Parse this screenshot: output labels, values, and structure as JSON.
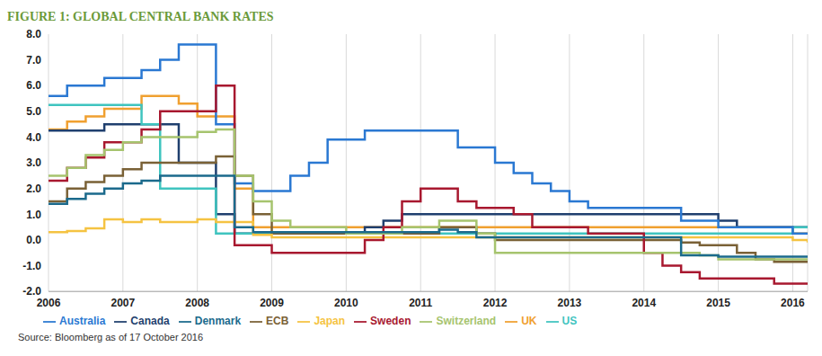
{
  "chart_data": {
    "type": "line",
    "title": "FIGURE 1: GLOBAL CENTRAL BANK RATES",
    "source": "Source: Bloomberg as of 17 October 2016",
    "line_style": "step",
    "grid": true,
    "legend": "bottom",
    "x": [
      2006,
      2006.25,
      2006.5,
      2006.75,
      2007,
      2007.25,
      2007.5,
      2007.75,
      2008,
      2008.25,
      2008.5,
      2008.75,
      2009,
      2009.25,
      2009.5,
      2009.75,
      2010,
      2010.25,
      2010.5,
      2010.75,
      2011,
      2011.25,
      2011.5,
      2011.75,
      2012,
      2012.25,
      2012.5,
      2012.75,
      2013,
      2013.25,
      2013.5,
      2013.75,
      2014,
      2014.25,
      2014.5,
      2014.75,
      2015,
      2015.25,
      2015.5,
      2015.75,
      2016,
      2016.2
    ],
    "xlim": [
      2006,
      2016.2
    ],
    "xticks": [
      2006,
      2007,
      2008,
      2009,
      2010,
      2011,
      2012,
      2013,
      2014,
      2015,
      2016
    ],
    "ylim": [
      -2,
      8
    ],
    "yticks": [
      {
        "value": 8,
        "label": "8.0"
      },
      {
        "value": 7,
        "label": "7.0"
      },
      {
        "value": 6,
        "label": "6.0"
      },
      {
        "value": 5,
        "label": "5.0"
      },
      {
        "value": 4,
        "label": "4.0"
      },
      {
        "value": 3,
        "label": "3.0"
      },
      {
        "value": 2,
        "label": "2.0"
      },
      {
        "value": 1,
        "label": "1.0"
      },
      {
        "value": 0,
        "label": "0.0"
      },
      {
        "value": -1,
        "label": "-1.0"
      },
      {
        "value": -2,
        "label": "-2.0"
      }
    ],
    "series": [
      {
        "name": "UK",
        "color": "#f0a030",
        "values": [
          4.3,
          4.6,
          4.8,
          5.1,
          5.1,
          5.6,
          5.6,
          5.3,
          4.8,
          4.8,
          2.0,
          0.5,
          0.5,
          0.5,
          0.5,
          0.5,
          0.5,
          0.5,
          0.5,
          0.5,
          0.5,
          0.5,
          0.5,
          0.5,
          0.5,
          0.5,
          0.5,
          0.5,
          0.5,
          0.5,
          0.5,
          0.5,
          0.5,
          0.5,
          0.5,
          0.5,
          0.5,
          0.5,
          0.5,
          0.5,
          0.25,
          0.25
        ]
      },
      {
        "name": "Canada",
        "color": "#1f3f6e",
        "values": [
          4.25,
          4.25,
          4.25,
          4.5,
          4.5,
          4.5,
          4.5,
          3.0,
          3.0,
          1.0,
          0.25,
          0.25,
          0.25,
          0.25,
          0.25,
          0.25,
          0.25,
          0.5,
          0.75,
          1.0,
          1.0,
          1.0,
          1.0,
          1.0,
          1.0,
          1.0,
          1.0,
          1.0,
          1.0,
          1.0,
          1.0,
          1.0,
          1.0,
          1.0,
          1.0,
          1.0,
          0.75,
          0.5,
          0.5,
          0.5,
          0.5,
          0.5
        ]
      },
      {
        "name": "US",
        "color": "#3fc4bf",
        "values": [
          5.25,
          5.25,
          5.25,
          5.25,
          5.25,
          4.5,
          2.0,
          2.0,
          2.0,
          0.25,
          0.25,
          0.25,
          0.25,
          0.25,
          0.25,
          0.25,
          0.25,
          0.25,
          0.25,
          0.25,
          0.25,
          0.25,
          0.25,
          0.25,
          0.25,
          0.25,
          0.25,
          0.25,
          0.25,
          0.25,
          0.25,
          0.25,
          0.25,
          0.25,
          0.25,
          0.25,
          0.25,
          0.25,
          0.25,
          0.25,
          0.5,
          0.5
        ]
      },
      {
        "name": "ECB",
        "color": "#7a6136",
        "values": [
          1.5,
          2.0,
          2.25,
          2.5,
          2.75,
          3.0,
          3.0,
          3.0,
          3.0,
          3.25,
          2.5,
          1.0,
          0.25,
          0.25,
          0.25,
          0.25,
          0.25,
          0.25,
          0.25,
          0.25,
          0.25,
          0.5,
          0.5,
          0.25,
          0.0,
          0.0,
          0.0,
          0.0,
          0.0,
          0.0,
          0.0,
          0.0,
          0.0,
          0.0,
          -0.1,
          -0.2,
          -0.2,
          -0.5,
          -0.75,
          -0.85,
          -0.85,
          -0.85
        ]
      },
      {
        "name": "Australia",
        "color": "#2a78d2",
        "values": [
          5.6,
          6.0,
          6.0,
          6.3,
          6.3,
          6.6,
          7.0,
          7.6,
          7.6,
          4.5,
          2.2,
          1.9,
          1.9,
          2.5,
          3.0,
          3.9,
          3.9,
          4.25,
          4.25,
          4.25,
          4.25,
          4.25,
          3.6,
          3.6,
          3.0,
          2.6,
          2.2,
          1.9,
          1.5,
          1.25,
          1.25,
          1.25,
          1.25,
          1.25,
          0.75,
          0.75,
          0.5,
          0.5,
          0.5,
          0.5,
          0.25,
          0.25
        ]
      },
      {
        "name": "Japan",
        "color": "#f5c342",
        "values": [
          0.3,
          0.35,
          0.45,
          0.8,
          0.7,
          0.8,
          0.7,
          0.7,
          0.8,
          0.7,
          0.7,
          0.2,
          0.1,
          0.1,
          0.1,
          0.1,
          0.1,
          0.1,
          0.1,
          0.1,
          0.1,
          0.1,
          0.1,
          0.1,
          0.1,
          0.1,
          0.1,
          0.1,
          0.1,
          0.1,
          0.1,
          0.1,
          0.1,
          0.1,
          0.1,
          0.1,
          0.1,
          0.1,
          0.1,
          0.1,
          0.0,
          -0.1
        ]
      },
      {
        "name": "Sweden",
        "color": "#a8182f",
        "values": [
          2.3,
          2.8,
          3.2,
          3.8,
          3.8,
          4.3,
          5.0,
          5.0,
          5.0,
          6.0,
          -0.2,
          -0.2,
          -0.5,
          -0.5,
          -0.5,
          -0.5,
          -0.5,
          0.0,
          0.5,
          1.5,
          2.0,
          2.0,
          1.5,
          1.25,
          1.25,
          1.0,
          0.5,
          0.5,
          0.5,
          0.25,
          0.25,
          0.25,
          -0.5,
          -1.0,
          -1.25,
          -1.5,
          -1.5,
          -1.5,
          -1.5,
          -1.7,
          -1.7,
          -1.7
        ]
      },
      {
        "name": "Switzerland",
        "color": "#a6c46e",
        "values": [
          2.5,
          2.8,
          3.3,
          3.5,
          3.8,
          4.0,
          4.0,
          4.0,
          4.2,
          4.3,
          2.5,
          1.5,
          0.75,
          0.5,
          0.5,
          0.5,
          0.25,
          0.25,
          0.25,
          0.5,
          0.5,
          0.75,
          0.75,
          0.25,
          -0.5,
          -0.5,
          -0.5,
          -0.5,
          -0.5,
          -0.5,
          -0.5,
          -0.5,
          -0.5,
          -0.5,
          -0.5,
          -0.6,
          -0.75,
          -0.75,
          -0.75,
          -0.75,
          -0.75,
          -0.75
        ]
      },
      {
        "name": "Denmark",
        "color": "#1b6a8c",
        "values": [
          1.4,
          1.6,
          1.8,
          2.0,
          2.2,
          2.3,
          2.5,
          2.5,
          2.5,
          2.5,
          0.5,
          0.3,
          0.3,
          0.3,
          0.3,
          0.3,
          0.3,
          0.3,
          0.3,
          0.3,
          0.3,
          0.4,
          0.3,
          0.1,
          0.1,
          0.1,
          0.1,
          0.1,
          0.1,
          0.1,
          0.1,
          0.1,
          0.1,
          0.1,
          -0.6,
          -0.6,
          -0.65,
          -0.65,
          -0.65,
          -0.65,
          -0.65,
          -0.65
        ]
      }
    ]
  }
}
